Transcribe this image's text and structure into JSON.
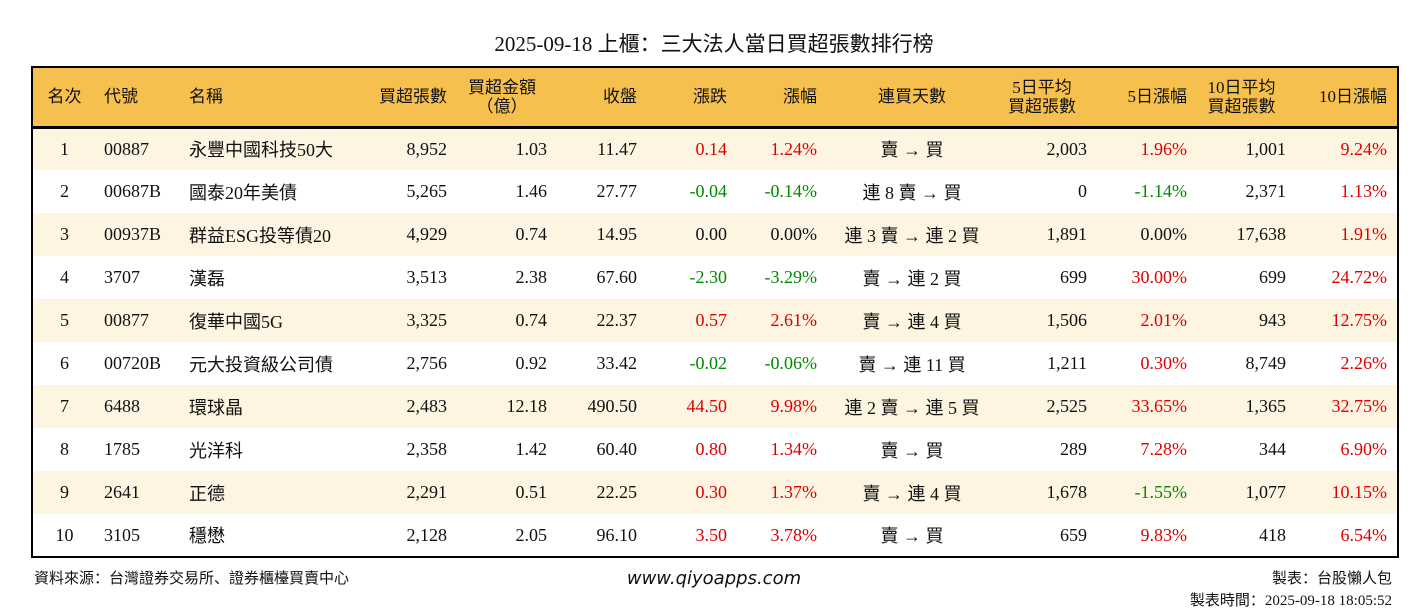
{
  "title": "2025-09-18 上櫃：三大法人當日買超張數排行榜",
  "headers": [
    "名次",
    "代號",
    "名稱",
    "買超張數",
    "買超金額\n（億）",
    "收盤",
    "漲跌",
    "漲幅",
    "連買天數",
    "5日平均\n買超張數",
    "5日漲幅",
    "10日平均\n買超張數",
    "10日漲幅"
  ],
  "colors": {
    "header_bg": "#f6c04e",
    "up": "#e00000",
    "down": "#008a00",
    "stripe": "#fdf5e1"
  },
  "rows": [
    [
      "1",
      "00887",
      "永豐中國科技50大",
      "8,952",
      "1.03",
      "11.47",
      "0.14",
      "1.24%",
      "賣 → 買",
      "2,003",
      "1.96%",
      "1,001",
      "9.24%"
    ],
    [
      "2",
      "00687B",
      "國泰20年美債",
      "5,265",
      "1.46",
      "27.77",
      "-0.04",
      "-0.14%",
      "連 8 賣 → 買",
      "0",
      "-1.14%",
      "2,371",
      "1.13%"
    ],
    [
      "3",
      "00937B",
      "群益ESG投等債20",
      "4,929",
      "0.74",
      "14.95",
      "0.00",
      "0.00%",
      "連 3 賣 → 連 2 買",
      "1,891",
      "0.00%",
      "17,638",
      "1.91%"
    ],
    [
      "4",
      "3707",
      "漢磊",
      "3,513",
      "2.38",
      "67.60",
      "-2.30",
      "-3.29%",
      "賣 → 連 2 買",
      "699",
      "30.00%",
      "699",
      "24.72%"
    ],
    [
      "5",
      "00877",
      "復華中國5G",
      "3,325",
      "0.74",
      "22.37",
      "0.57",
      "2.61%",
      "賣 → 連 4 買",
      "1,506",
      "2.01%",
      "943",
      "12.75%"
    ],
    [
      "6",
      "00720B",
      "元大投資級公司債",
      "2,756",
      "0.92",
      "33.42",
      "-0.02",
      "-0.06%",
      "賣 → 連 11 買",
      "1,211",
      "0.30%",
      "8,749",
      "2.26%"
    ],
    [
      "7",
      "6488",
      "環球晶",
      "2,483",
      "12.18",
      "490.50",
      "44.50",
      "9.98%",
      "連 2 賣 → 連 5 買",
      "2,525",
      "33.65%",
      "1,365",
      "32.75%"
    ],
    [
      "8",
      "1785",
      "光洋科",
      "2,358",
      "1.42",
      "60.40",
      "0.80",
      "1.34%",
      "賣 → 買",
      "289",
      "7.28%",
      "344",
      "6.90%"
    ],
    [
      "9",
      "2641",
      "正德",
      "2,291",
      "0.51",
      "22.25",
      "0.30",
      "1.37%",
      "賣 → 連 4 買",
      "1,678",
      "-1.55%",
      "1,077",
      "10.15%"
    ],
    [
      "10",
      "3105",
      "穩懋",
      "2,128",
      "2.05",
      "96.10",
      "3.50",
      "3.78%",
      "賣 → 買",
      "659",
      "9.83%",
      "418",
      "6.54%"
    ]
  ],
  "footer": {
    "source": "資料來源：台灣證券交易所、證券櫃檯買賣中心",
    "website": "www.qiyoapps.com",
    "maker": "製表：台股懶人包",
    "time": "製表時間：2025-09-18 18:05:52"
  }
}
